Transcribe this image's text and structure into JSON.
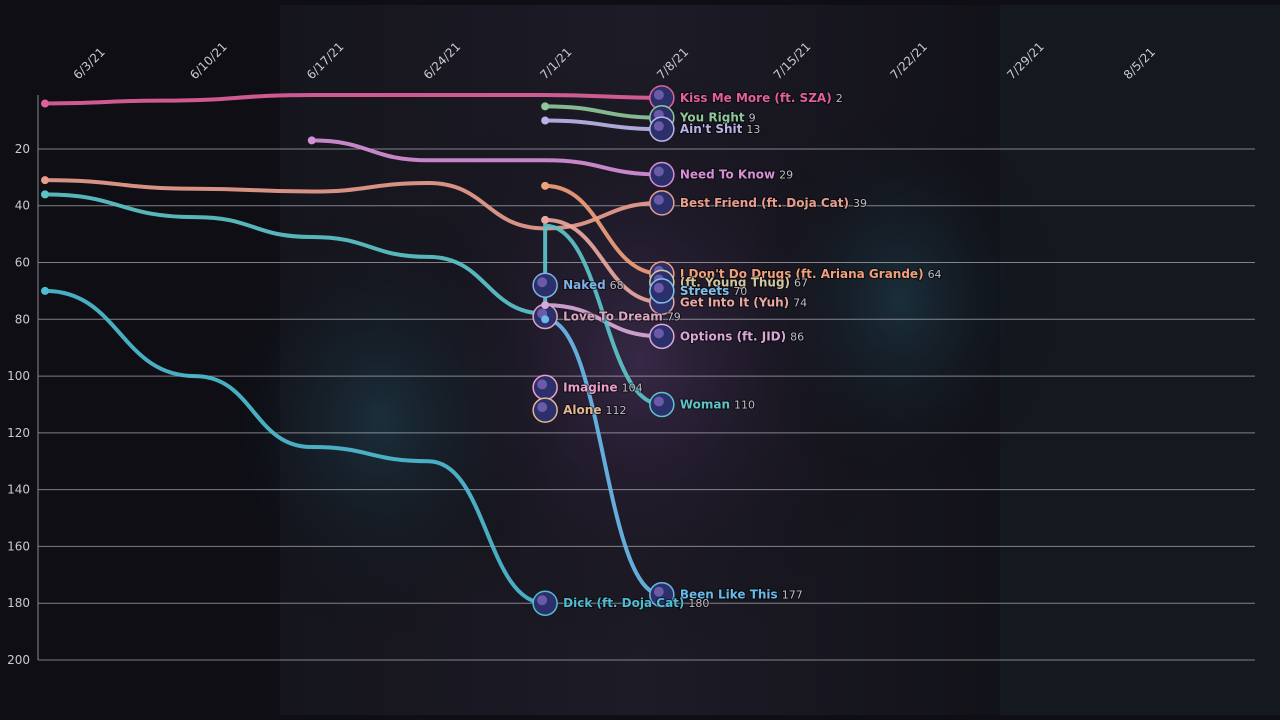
{
  "chart_data": {
    "type": "line",
    "title": "",
    "xlabel": "",
    "ylabel": "",
    "y_inverted": true,
    "ylim": [
      200,
      1
    ],
    "xlim": [
      "2021-06-01",
      "2021-08-10"
    ],
    "grid": true,
    "legend": "labels at line ends",
    "x_ticks": [
      "6/3/21",
      "6/10/21",
      "6/17/21",
      "6/24/21",
      "7/1/21",
      "7/8/21",
      "7/15/21",
      "7/22/21",
      "7/29/21",
      "8/5/21"
    ],
    "y_ticks": [
      20,
      40,
      60,
      80,
      100,
      120,
      140,
      160,
      180,
      200
    ],
    "series": [
      {
        "name": "Kiss Me More (ft. SZA)",
        "rank": "2",
        "color": "#e0609c",
        "points": [
          [
            "2021-06-01",
            4
          ],
          [
            "2021-06-08",
            3
          ],
          [
            "2021-06-17",
            1
          ],
          [
            "2021-06-24",
            1
          ],
          [
            "2021-07-01",
            1
          ],
          [
            "2021-07-08",
            2
          ]
        ]
      },
      {
        "name": "You Right",
        "rank": "9",
        "color": "#8fc79a",
        "points": [
          [
            "2021-07-01",
            5
          ],
          [
            "2021-07-08",
            9
          ]
        ]
      },
      {
        "name": "Ain't Shit",
        "rank": "13",
        "color": "#b8b4e8",
        "points": [
          [
            "2021-07-01",
            10
          ],
          [
            "2021-07-08",
            13
          ]
        ]
      },
      {
        "name": "Need To Know",
        "rank": "29",
        "color": "#d58fd6",
        "points": [
          [
            "2021-06-17",
            17
          ],
          [
            "2021-06-24",
            24
          ],
          [
            "2021-07-01",
            24
          ],
          [
            "2021-07-08",
            29
          ]
        ]
      },
      {
        "name": "Best Friend (ft. Doja Cat)",
        "rank": "39",
        "color": "#e89d8e",
        "points": [
          [
            "2021-06-01",
            31
          ],
          [
            "2021-06-10",
            34
          ],
          [
            "2021-06-17",
            35
          ],
          [
            "2021-06-24",
            32
          ],
          [
            "2021-07-01",
            48
          ],
          [
            "2021-07-08",
            39
          ]
        ]
      },
      {
        "name": "I Don't Do Drugs (ft. Ariana Grande)",
        "rank": "64",
        "color": "#f0a07a",
        "points": [
          [
            "2021-07-01",
            33
          ],
          [
            "2021-07-08",
            64
          ]
        ]
      },
      {
        "name": "Naked",
        "rank": "68",
        "color": "#7fb0e6",
        "points": [
          [
            "2021-07-01",
            68
          ]
        ]
      },
      {
        "name": "(ft. Young Thug)",
        "rank": "67",
        "color": "#d0c6a0",
        "points": [
          [
            "2021-07-08",
            67
          ]
        ]
      },
      {
        "name": "Get Into It (Yuh)",
        "rank": "74",
        "color": "#e9a8a0",
        "points": [
          [
            "2021-07-01",
            45
          ],
          [
            "2021-07-08",
            74
          ]
        ]
      },
      {
        "name": "Streets",
        "rank": "70",
        "color": "#7fc1e8",
        "points": [
          [
            "2021-07-08",
            70
          ]
        ]
      },
      {
        "name": "Love To Dream",
        "rank": "79",
        "color": "#d9a8c0",
        "points": [
          [
            "2021-07-01",
            79
          ]
        ]
      },
      {
        "name": "Options (ft. JID)",
        "rank": "86",
        "color": "#d9a8d8",
        "points": [
          [
            "2021-07-01",
            75
          ],
          [
            "2021-07-08",
            86
          ]
        ]
      },
      {
        "name": "Woman",
        "rank": "110",
        "color": "#5cc4c9",
        "points": [
          [
            "2021-06-01",
            36
          ],
          [
            "2021-06-10",
            44
          ],
          [
            "2021-06-17",
            51
          ],
          [
            "2021-06-24",
            58
          ],
          [
            "2021-07-01",
            78
          ],
          [
            "2021-07-01",
            47
          ],
          [
            "2021-07-08",
            110
          ]
        ]
      },
      {
        "name": "Imagine",
        "rank": "104",
        "color": "#e9a0c8",
        "points": [
          [
            "2021-07-01",
            104
          ]
        ]
      },
      {
        "name": "Alone",
        "rank": "112",
        "color": "#e0b890",
        "points": [
          [
            "2021-07-01",
            112
          ]
        ]
      },
      {
        "name": "Been Like This",
        "rank": "177",
        "color": "#6ab8e8",
        "points": [
          [
            "2021-07-01",
            80
          ],
          [
            "2021-07-08",
            177
          ]
        ]
      },
      {
        "name": "Dick (ft. Doja Cat)",
        "rank": "180",
        "color": "#4fbcd1",
        "points": [
          [
            "2021-06-01",
            70
          ],
          [
            "2021-06-10",
            100
          ],
          [
            "2021-06-17",
            125
          ],
          [
            "2021-06-24",
            130
          ],
          [
            "2021-07-01",
            180
          ]
        ]
      }
    ]
  }
}
